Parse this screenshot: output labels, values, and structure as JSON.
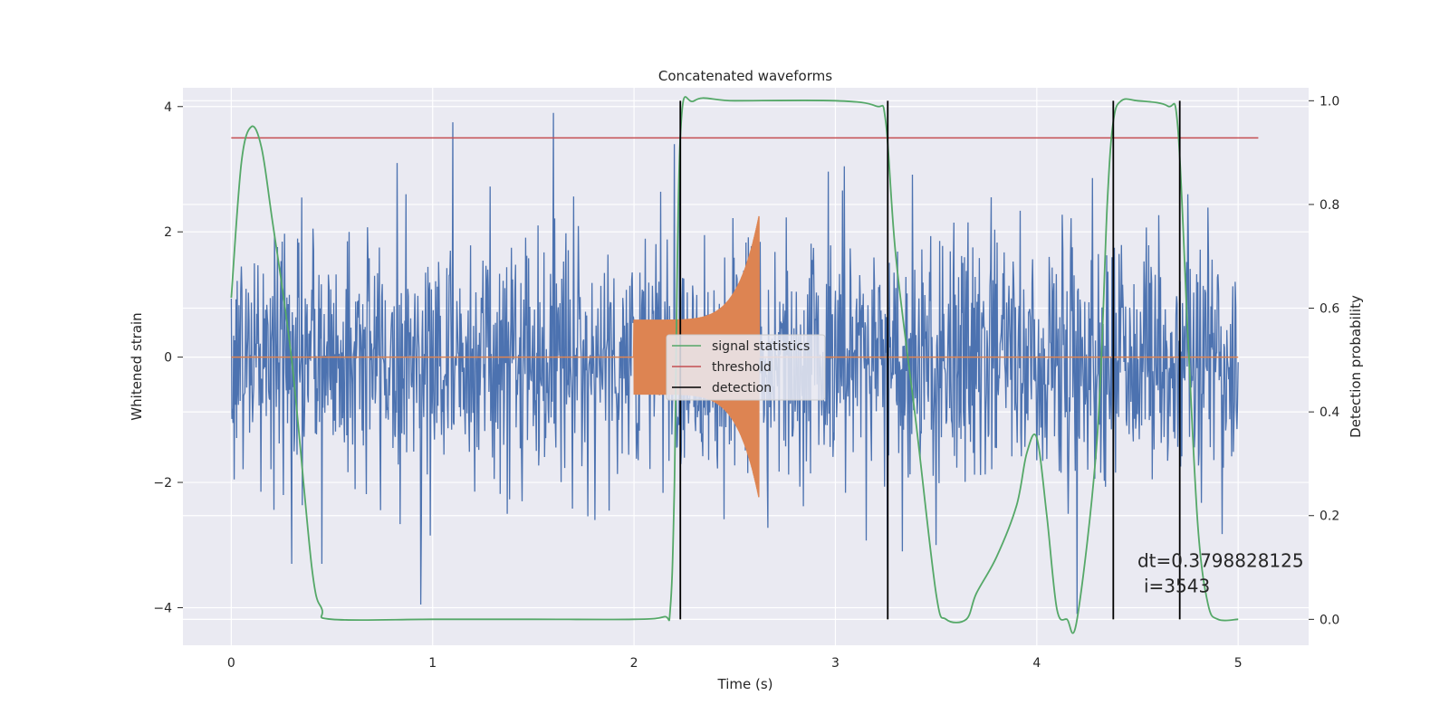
{
  "chart_data": {
    "type": "line",
    "title": "Concatenated waveforms",
    "xlabel": "Time (s)",
    "ylabel_left": "Whitened strain",
    "ylabel_right": "Detection probability",
    "xlim": [
      -0.24,
      5.35
    ],
    "ylim_left": [
      -4.6,
      4.3
    ],
    "ylim_right": [
      -0.05,
      1.025
    ],
    "x_ticks": [
      0,
      1,
      2,
      3,
      4,
      5
    ],
    "x_tick_labels": [
      "0",
      "1",
      "2",
      "3",
      "4",
      "5"
    ],
    "y_left_ticks": [
      -4,
      -2,
      0,
      2,
      4
    ],
    "y_left_tick_labels": [
      "−4",
      "−2",
      "0",
      "2",
      "4"
    ],
    "y_right_ticks": [
      0.0,
      0.2,
      0.4,
      0.6,
      0.8,
      1.0
    ],
    "y_right_tick_labels": [
      "0.0",
      "0.2",
      "0.4",
      "0.6",
      "0.8",
      "1.0"
    ],
    "grid": true,
    "legend_placement": "center",
    "background": "#eaeaf2",
    "series": [
      {
        "name": "",
        "kind": "noise",
        "axis": "left",
        "color": "#4c72b0",
        "x_range": [
          0,
          5
        ],
        "typical_amplitude": 1.4,
        "spikes": [
          [
            1.1,
            3.75
          ],
          [
            1.6,
            3.9
          ],
          [
            2.2,
            3.4
          ],
          [
            0.94,
            -3.95
          ],
          [
            0.45,
            -3.3
          ],
          [
            0.3,
            -3.3
          ],
          [
            4.2,
            -4.1
          ],
          [
            3.26,
            -3.4
          ],
          [
            3.5,
            -3.0
          ]
        ]
      },
      {
        "name": "",
        "kind": "chirp",
        "axis": "left",
        "color": "#dd8452",
        "baseline": 0,
        "x_range": [
          0,
          5
        ],
        "burst": {
          "start": 2.0,
          "end": 2.62,
          "start_amplitude": 0.6,
          "peak_amplitude": 2.25
        }
      },
      {
        "name": "threshold",
        "axis": "left",
        "color": "#c44e52",
        "x": [
          0,
          5.1
        ],
        "y": [
          3.5,
          3.5
        ]
      },
      {
        "name": "signal statistics",
        "axis": "right",
        "color": "#55a868",
        "x": [
          0,
          0.05,
          0.1,
          0.15,
          0.2,
          0.3,
          0.4,
          0.45,
          0.5,
          1.0,
          1.5,
          2.0,
          2.15,
          2.18,
          2.2,
          2.23,
          2.3,
          2.5,
          3.0,
          3.2,
          3.25,
          3.3,
          3.4,
          3.5,
          3.55,
          3.65,
          3.7,
          3.8,
          3.9,
          3.95,
          4.0,
          4.05,
          4.1,
          4.15,
          4.2,
          4.3,
          4.35,
          4.38,
          4.42,
          4.5,
          4.65,
          4.7,
          4.75,
          4.8,
          4.85,
          4.9,
          5.0
        ],
        "y": [
          0.62,
          0.88,
          0.95,
          0.91,
          0.78,
          0.5,
          0.1,
          0.02,
          0.0,
          0.0,
          0.0,
          0.0,
          0.005,
          0.02,
          0.25,
          0.93,
          1.0,
          1.0,
          1.0,
          0.99,
          0.96,
          0.7,
          0.38,
          0.05,
          0.0,
          0.0,
          0.05,
          0.12,
          0.22,
          0.32,
          0.35,
          0.2,
          0.02,
          0.0,
          0.0,
          0.35,
          0.8,
          0.96,
          1.0,
          1.0,
          0.99,
          0.95,
          0.55,
          0.18,
          0.03,
          0.0,
          0.0
        ]
      },
      {
        "name": "detection",
        "axis": "right",
        "color": "#000000",
        "vlines": [
          2.23,
          3.26,
          4.38,
          4.71
        ]
      }
    ],
    "annotation": {
      "line1": "dt=0.3798828125",
      "line2": "i=3543",
      "x": 4.5,
      "y_left": -3.35
    }
  }
}
